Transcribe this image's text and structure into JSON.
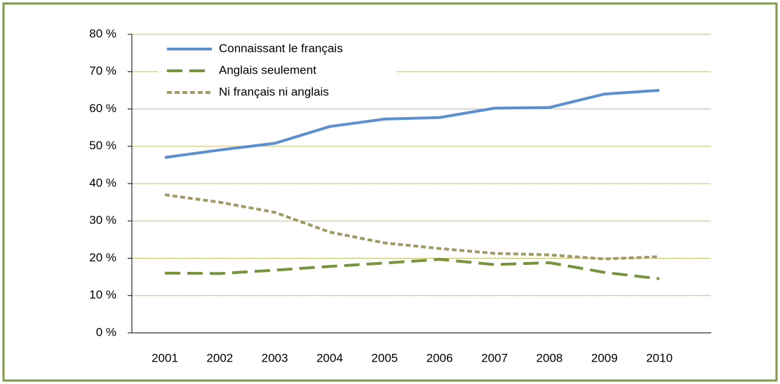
{
  "chart_data": {
    "type": "line",
    "categories": [
      "2001",
      "2002",
      "2003",
      "2004",
      "2005",
      "2006",
      "2007",
      "2008",
      "2009",
      "2010"
    ],
    "series": [
      {
        "name": "Connaissant le français",
        "color": "#5b8fd0",
        "style": "solid",
        "values": [
          47,
          49,
          50.8,
          55.3,
          57.3,
          57.7,
          60.2,
          60.4,
          64,
          65
        ]
      },
      {
        "name": "Anglais seulement",
        "color": "#77933c",
        "style": "dashed",
        "values": [
          16,
          15.9,
          16.8,
          17.8,
          18.7,
          19.7,
          18.3,
          18.8,
          16.2,
          14.5
        ]
      },
      {
        "name": "Ni français ni anglais",
        "color": "#a09a66",
        "style": "dotted",
        "values": [
          37,
          35,
          32.3,
          27,
          24.1,
          22.6,
          21.3,
          20.9,
          19.8,
          20.4
        ]
      }
    ],
    "ylim": [
      0,
      80
    ],
    "yticks": [
      {
        "value": 0,
        "label": "0 %"
      },
      {
        "value": 10,
        "label": "10 %"
      },
      {
        "value": 20,
        "label": "20 %"
      },
      {
        "value": 30,
        "label": "30 %"
      },
      {
        "value": 40,
        "label": "40 %"
      },
      {
        "value": 50,
        "label": "50 %"
      },
      {
        "value": 60,
        "label": "60 %"
      },
      {
        "value": 70,
        "label": "70 %"
      },
      {
        "value": 80,
        "label": "80 %"
      }
    ],
    "grid": true,
    "legend": "top-left"
  }
}
